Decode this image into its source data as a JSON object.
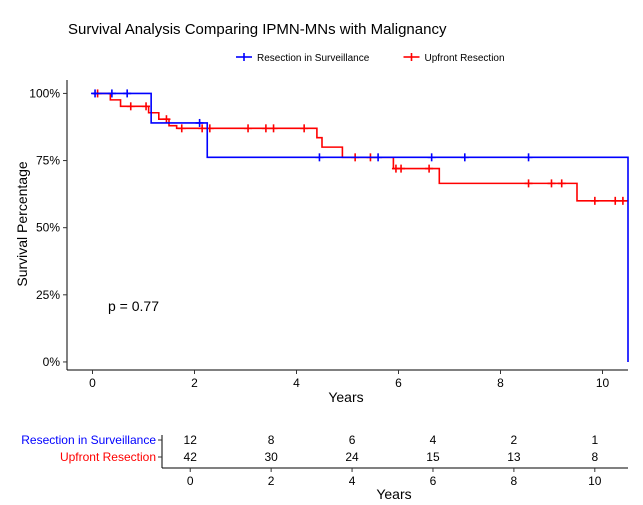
{
  "chart_data": {
    "type": "line",
    "subtype": "kaplan-meier-step",
    "title": "Survival Analysis Comparing IPMN-MNs with Malignancy",
    "xlabel": "Years",
    "ylabel": "Survival Percentage",
    "xlim": [
      -0.5,
      10.5
    ],
    "ylim": [
      -0.03,
      1.05
    ],
    "x_ticks": [
      0,
      2,
      4,
      6,
      8,
      10
    ],
    "y_ticks": [
      0,
      0.25,
      0.5,
      0.75,
      1.0
    ],
    "y_tick_labels": [
      "0%",
      "25%",
      "50%",
      "75%",
      "100%"
    ],
    "grid": false,
    "legend_position": "top",
    "annotation": "p = 0.77",
    "series": [
      {
        "name": "Resection in Surveillance",
        "color": "#0000ff",
        "steps": [
          [
            0,
            1.0
          ],
          [
            1.15,
            0.89
          ],
          [
            2.25,
            0.762
          ],
          [
            10.5,
            0.762
          ],
          [
            10.5,
            0.0
          ]
        ],
        "censored": [
          [
            0.05,
            1.0
          ],
          [
            0.38,
            1.0
          ],
          [
            0.68,
            1.0
          ],
          [
            2.1,
            0.89
          ],
          [
            4.45,
            0.762
          ],
          [
            5.6,
            0.762
          ],
          [
            6.65,
            0.762
          ],
          [
            7.3,
            0.762
          ],
          [
            8.55,
            0.762
          ]
        ]
      },
      {
        "name": "Upfront Resection",
        "color": "#ff0000",
        "steps": [
          [
            0,
            1.0
          ],
          [
            0.35,
            0.976
          ],
          [
            0.55,
            0.952
          ],
          [
            1.1,
            0.928
          ],
          [
            1.3,
            0.904
          ],
          [
            1.5,
            0.88
          ],
          [
            1.65,
            0.87
          ],
          [
            4.4,
            0.835
          ],
          [
            4.5,
            0.8
          ],
          [
            4.9,
            0.762
          ],
          [
            5.9,
            0.72
          ],
          [
            6.8,
            0.665
          ],
          [
            9.5,
            0.6
          ],
          [
            10.5,
            0.6
          ]
        ],
        "censored": [
          [
            0.1,
            1.0
          ],
          [
            0.75,
            0.952
          ],
          [
            1.05,
            0.952
          ],
          [
            1.45,
            0.904
          ],
          [
            1.75,
            0.87
          ],
          [
            2.15,
            0.87
          ],
          [
            2.3,
            0.87
          ],
          [
            3.05,
            0.87
          ],
          [
            3.4,
            0.87
          ],
          [
            3.55,
            0.87
          ],
          [
            4.15,
            0.87
          ],
          [
            5.15,
            0.762
          ],
          [
            5.45,
            0.762
          ],
          [
            5.95,
            0.72
          ],
          [
            6.05,
            0.72
          ],
          [
            6.6,
            0.72
          ],
          [
            8.55,
            0.665
          ],
          [
            9.0,
            0.665
          ],
          [
            9.2,
            0.665
          ],
          [
            9.85,
            0.6
          ],
          [
            10.25,
            0.6
          ],
          [
            10.4,
            0.6
          ]
        ]
      }
    ],
    "risk_table": {
      "xlabel": "Years",
      "x_ticks": [
        0,
        2,
        4,
        6,
        8,
        10
      ],
      "rows": [
        {
          "name": "Resection in Surveillance",
          "color": "#0000ff",
          "values": [
            12,
            8,
            6,
            4,
            2,
            1
          ]
        },
        {
          "name": "Upfront Resection",
          "color": "#ff0000",
          "values": [
            42,
            30,
            24,
            15,
            13,
            8
          ]
        }
      ]
    }
  }
}
